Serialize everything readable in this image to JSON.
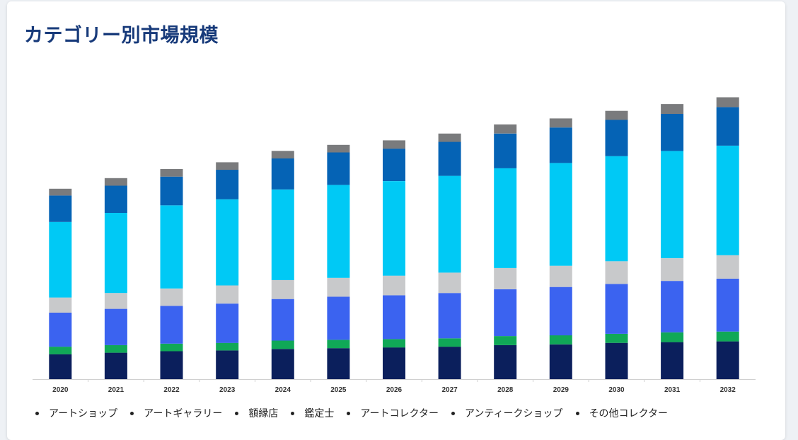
{
  "title": "カテゴリー別市場規模",
  "legend": [
    "アートショップ",
    "アートギャラリー",
    "額縁店",
    "鑑定士",
    "アートコレクター",
    "アンティークショップ",
    "その他コレクター"
  ],
  "chart_data": {
    "type": "bar",
    "stacked": true,
    "title": "",
    "xlabel": "",
    "ylabel": "",
    "categories": [
      "2020",
      "2021",
      "2022",
      "2023",
      "2024",
      "2025",
      "2026",
      "2027",
      "2028",
      "2029",
      "2030",
      "2031",
      "2032"
    ],
    "ylim": [
      0,
      380
    ],
    "grid": false,
    "legend_position": "bottom",
    "series": [
      {
        "name": "アートショップ",
        "color": "#0b1f5c",
        "values": [
          33,
          35,
          37,
          38,
          40,
          41,
          42,
          43,
          45,
          46,
          48,
          49,
          50
        ]
      },
      {
        "name": "アートギャラリー",
        "color": "#10a857",
        "values": [
          10,
          10,
          10,
          10,
          11,
          11,
          11,
          11,
          12,
          12,
          12,
          13,
          13
        ]
      },
      {
        "name": "額縁店",
        "color": "#3b63f0",
        "values": [
          45,
          48,
          50,
          52,
          55,
          57,
          58,
          60,
          62,
          64,
          66,
          68,
          70
        ]
      },
      {
        "name": "鑑定士",
        "color": "#c8c9cb",
        "values": [
          20,
          21,
          23,
          24,
          25,
          25,
          26,
          27,
          28,
          28,
          30,
          30,
          31
        ]
      },
      {
        "name": "アートコレクター",
        "color": "#00c9f5",
        "values": [
          100,
          106,
          110,
          114,
          120,
          123,
          125,
          128,
          132,
          136,
          139,
          142,
          145
        ]
      },
      {
        "name": "アンティークショップ",
        "color": "#0563b5",
        "values": [
          35,
          36,
          38,
          39,
          41,
          43,
          43,
          45,
          46,
          47,
          48,
          49,
          51
        ]
      },
      {
        "name": "その他コレクター",
        "color": "#7a7b7d",
        "values": [
          9,
          10,
          10,
          10,
          10,
          10,
          11,
          11,
          12,
          12,
          12,
          13,
          13
        ]
      }
    ]
  }
}
